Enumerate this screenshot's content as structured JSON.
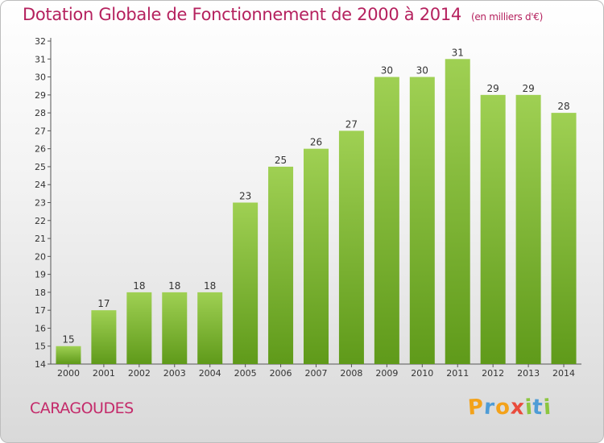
{
  "chart_data": {
    "type": "bar",
    "title": "Dotation Globale de Fonctionnement de 2000 à 2014",
    "subtitle": "(en milliers d'€)",
    "xlabel": "",
    "ylabel": "",
    "categories": [
      "2000",
      "2001",
      "2002",
      "2003",
      "2004",
      "2005",
      "2006",
      "2007",
      "2008",
      "2009",
      "2010",
      "2011",
      "2012",
      "2013",
      "2014"
    ],
    "values": [
      15,
      17,
      18,
      18,
      18,
      23,
      25,
      26,
      27,
      30,
      30,
      31,
      29,
      29,
      28
    ],
    "ylim": [
      14,
      32
    ],
    "yticks": [
      14,
      15,
      16,
      17,
      18,
      19,
      20,
      21,
      22,
      23,
      24,
      25,
      26,
      27,
      28,
      29,
      30,
      31,
      32
    ],
    "grid": false,
    "legend": "none",
    "bar_color_top": "#9fd053",
    "bar_color_bottom": "#5f9a1a"
  },
  "commune": "CARAGOUDES",
  "logo": {
    "letters": [
      "P",
      "r",
      "o",
      "x",
      "i",
      "t",
      "i"
    ],
    "colors": [
      "#f3a21a",
      "#4e9cd6",
      "#f3a21a",
      "#e94b3c",
      "#8cc63f",
      "#4e9cd6",
      "#8cc63f"
    ]
  }
}
